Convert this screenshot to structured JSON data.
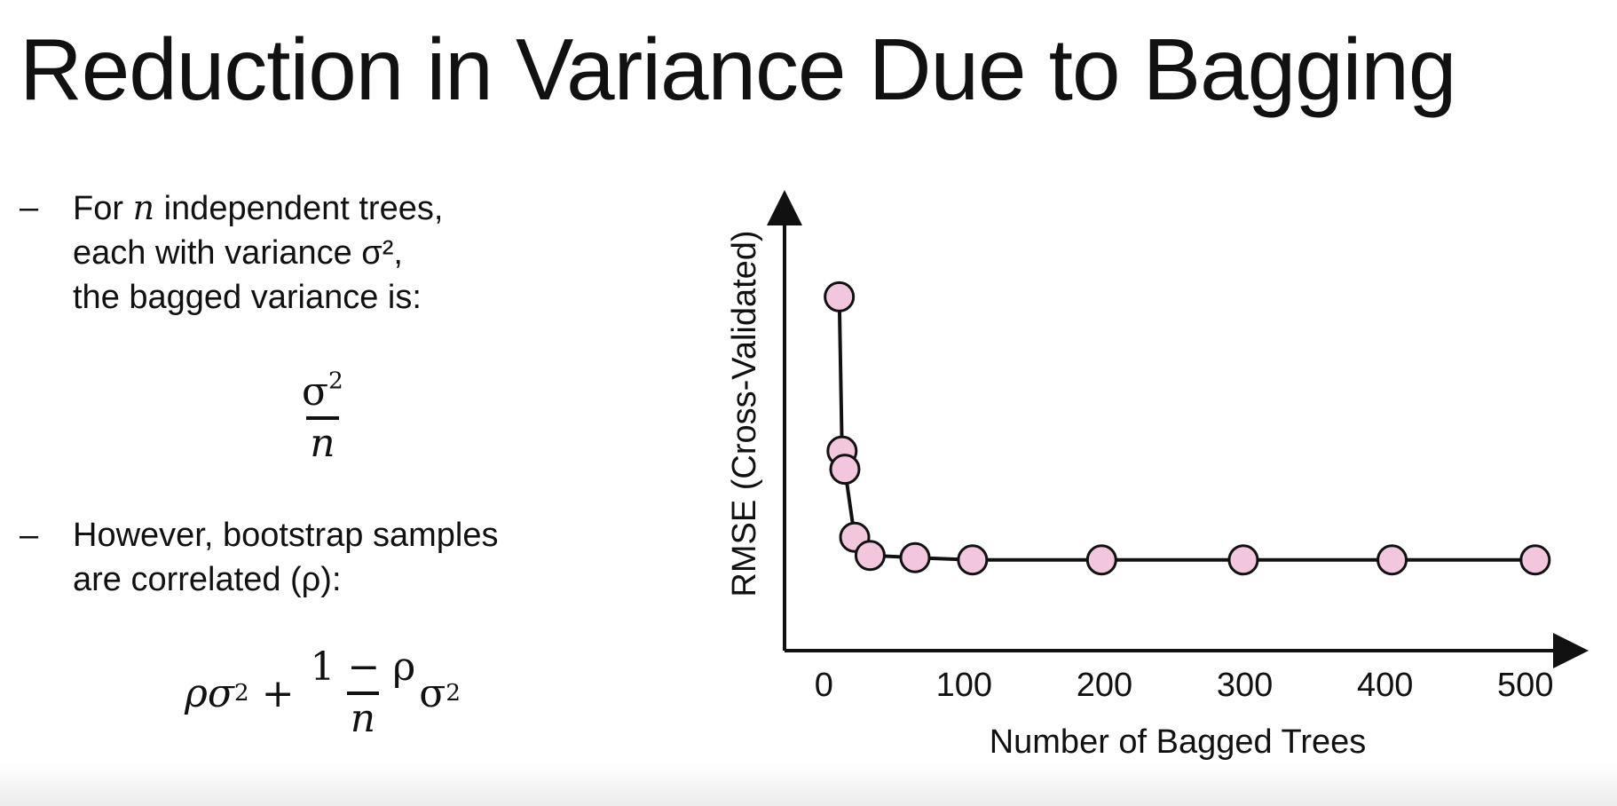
{
  "slide": {
    "title": "Reduction in Variance Due to Bagging",
    "bullets": [
      {
        "dash": "–",
        "lines": [
          "For n independent trees,",
          "each with variance σ², ",
          "the bagged variance is:"
        ]
      },
      {
        "dash": "–",
        "lines": [
          "However, bootstrap samples",
          "are correlated (ρ):"
        ]
      }
    ],
    "formula1": {
      "numerator": "σ",
      "numerator_exp": "2",
      "denominator": "n"
    },
    "formula2": {
      "lead": "ρσ",
      "lead_exp": "2",
      "plus": " + ",
      "numerator": "1 − ρ",
      "denominator": "n",
      "trail": "σ",
      "trail_exp": "2"
    }
  },
  "chart_data": {
    "type": "line",
    "title": "",
    "xlabel": "Number of Bagged Trees",
    "ylabel": "RMSE (Cross-Validated)",
    "x_ticks": [
      0,
      100,
      200,
      300,
      400,
      500
    ],
    "xlim": [
      -28,
      540
    ],
    "ylim": [
      0,
      1
    ],
    "y_tick_labels": "none",
    "series": [
      {
        "x": [
          11,
          13,
          15,
          22,
          33,
          65,
          106,
          198,
          299,
          405,
          507
        ],
        "y": [
          0.78,
          0.44,
          0.4,
          0.25,
          0.21,
          0.205,
          0.2,
          0.2,
          0.2,
          0.2,
          0.2
        ],
        "marker_color": "#f2c6dc",
        "line_color": "#111111"
      }
    ],
    "grid": false,
    "legend": "none"
  }
}
